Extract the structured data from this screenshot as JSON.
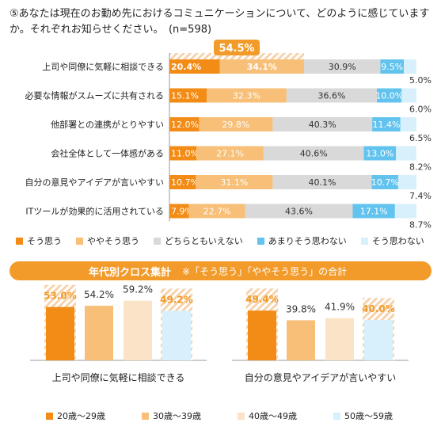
{
  "question": "⑤あなたは現在のお勤め先におけるコミュニケーションについて、どのように感じていますか。それぞれお知らせください。　(n=598)",
  "colors": {
    "s1": "#f28c16",
    "s2": "#f7bf77",
    "s3": "#d9d9d9",
    "s4": "#62c3ee",
    "s5": "#d7f0fb",
    "hatch": "#f6d3ad",
    "accent": "#f29b2a"
  },
  "chart_data": [
    {
      "type": "bar",
      "orientation": "horizontal-stacked",
      "unit": "%",
      "categories": [
        "上司や同僚に気軽に相談できる",
        "必要な情報がスムーズに共有される",
        "他部署との連携がとりやすい",
        "会社全体として一体感がある",
        "自分の意見やアイデアが言いやすい",
        "ITツールが効果的に活用されている"
      ],
      "series": [
        {
          "name": "そう思う",
          "values": [
            20.4,
            15.1,
            12.0,
            11.0,
            10.7,
            7.9
          ]
        },
        {
          "name": "ややそう思う",
          "values": [
            34.1,
            32.3,
            29.8,
            27.1,
            31.1,
            22.7
          ]
        },
        {
          "name": "どちらともいえない",
          "values": [
            30.9,
            36.6,
            40.3,
            40.6,
            40.1,
            43.6
          ]
        },
        {
          "name": "あまりそう思わない",
          "values": [
            9.5,
            10.0,
            11.4,
            13.0,
            10.7,
            17.1
          ]
        },
        {
          "name": "そう思わない",
          "values": [
            5.0,
            6.0,
            6.5,
            8.2,
            7.4,
            8.7
          ]
        }
      ],
      "labels": [
        [
          "20.4%",
          "34.1%",
          "30.9%",
          "9.5%",
          "5.0%"
        ],
        [
          "15.1%",
          "32.3%",
          "36.6%",
          "10.0%",
          "6.0%"
        ],
        [
          "12.0%",
          "29.8%",
          "40.3%",
          "11.4%",
          "6.5%"
        ],
        [
          "11.0%",
          "27.1%",
          "40.6%",
          "13.0%",
          "8.2%"
        ],
        [
          "10.7%",
          "31.1%",
          "40.1%",
          "10.7%",
          "7.4%"
        ],
        [
          "7.9%",
          "22.7%",
          "43.6%",
          "17.1%",
          "8.7%"
        ]
      ],
      "highlight": {
        "category_index": 0,
        "label": "54.5%"
      },
      "legend_position": "bottom"
    },
    {
      "type": "bar",
      "title": "年代別クロス集計",
      "subtitle": "※「そう思う」「ややそう思う」の合計",
      "unit": "%",
      "groups": [
        "上司や同僚に気軽に相談できる",
        "自分の意見やアイデアが言いやすい"
      ],
      "series": [
        {
          "name": "20歳～29歳",
          "values": [
            53.0,
            49.4
          ]
        },
        {
          "name": "30歳～39歳",
          "values": [
            54.2,
            39.8
          ]
        },
        {
          "name": "40歳～49歳",
          "values": [
            59.2,
            41.9
          ]
        },
        {
          "name": "50歳～59歳",
          "values": [
            49.2,
            40.0
          ]
        }
      ],
      "labels": [
        [
          "53.0%",
          "54.2%",
          "59.2%",
          "49.2%"
        ],
        [
          "49.4%",
          "39.8%",
          "41.9%",
          "40.0%"
        ]
      ],
      "highlighted": [
        [
          true,
          false,
          false,
          true
        ],
        [
          true,
          false,
          false,
          true
        ]
      ],
      "ylim": [
        0,
        70
      ],
      "legend_position": "bottom"
    }
  ]
}
